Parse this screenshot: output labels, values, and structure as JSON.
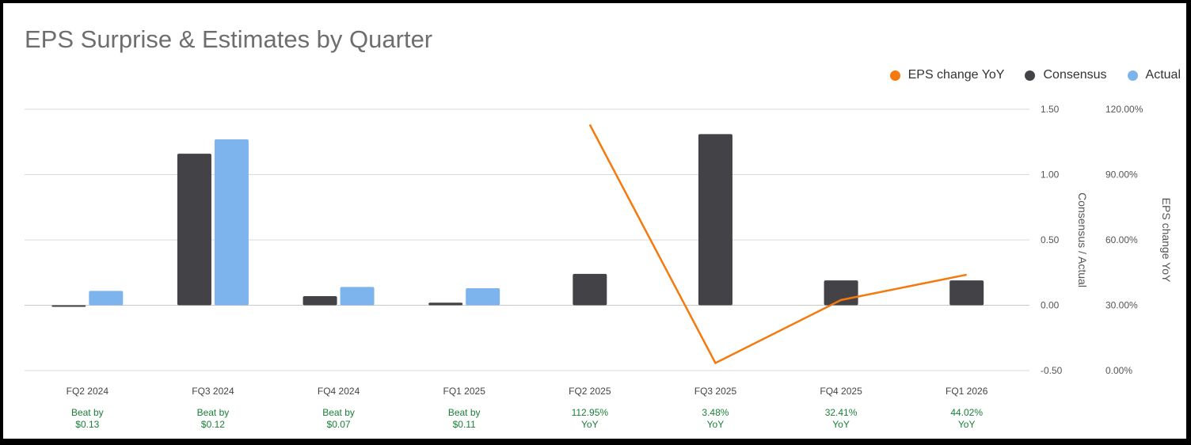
{
  "title": "EPS Surprise & Estimates by Quarter",
  "legend": [
    {
      "label": "EPS change YoY",
      "color": "#f47a0d",
      "icon": "circle"
    },
    {
      "label": "Consensus",
      "color": "#434247",
      "icon": "circle"
    },
    {
      "label": "Actual",
      "color": "#7db4ed",
      "icon": "circle"
    }
  ],
  "chart_data": {
    "type": "bar",
    "title": "EPS Surprise & Estimates by Quarter",
    "categories": [
      "FQ2 2024",
      "FQ3 2024",
      "FQ4 2024",
      "FQ1 2025",
      "FQ2 2025",
      "FQ3 2025",
      "FQ4 2025",
      "FQ1 2026"
    ],
    "annotations": [
      [
        "Beat by",
        "$0.13"
      ],
      [
        "Beat by",
        "$0.12"
      ],
      [
        "Beat by",
        "$0.07"
      ],
      [
        "Beat by",
        "$0.11"
      ],
      [
        "112.95%",
        "YoY"
      ],
      [
        "3.48%",
        "YoY"
      ],
      [
        "32.41%",
        "YoY"
      ],
      [
        "44.02%",
        "YoY"
      ]
    ],
    "annotation_color": "#1a7f37",
    "series": [
      {
        "name": "Consensus",
        "type": "bar",
        "axis": "left",
        "color": "#434247",
        "values": [
          -0.01,
          1.16,
          0.07,
          0.02,
          0.24,
          1.31,
          0.19,
          0.19
        ]
      },
      {
        "name": "Actual",
        "type": "bar",
        "axis": "left",
        "color": "#7db4ed",
        "values": [
          0.11,
          1.27,
          0.14,
          0.13,
          null,
          null,
          null,
          null
        ]
      },
      {
        "name": "EPS change YoY",
        "type": "line",
        "axis": "right",
        "color": "#f47a0d",
        "values": [
          null,
          null,
          null,
          null,
          112.95,
          3.48,
          32.41,
          44.02
        ]
      }
    ],
    "y_left": {
      "label": "Consensus / Actual",
      "ticks": [
        "1.50",
        "1.00",
        "0.50",
        "0.00",
        "-0.50"
      ],
      "tick_values": [
        1.5,
        1.0,
        0.5,
        0.0,
        -0.5
      ],
      "min": -0.5,
      "max": 1.5
    },
    "y_right": {
      "label": "EPS change YoY",
      "ticks": [
        "120.00%",
        "90.00%",
        "60.00%",
        "30.00%",
        "0.00%"
      ],
      "tick_values": [
        120,
        90,
        60,
        30,
        0
      ],
      "min": 0,
      "max": 120
    },
    "grid": true,
    "legend_position": "top-right"
  }
}
